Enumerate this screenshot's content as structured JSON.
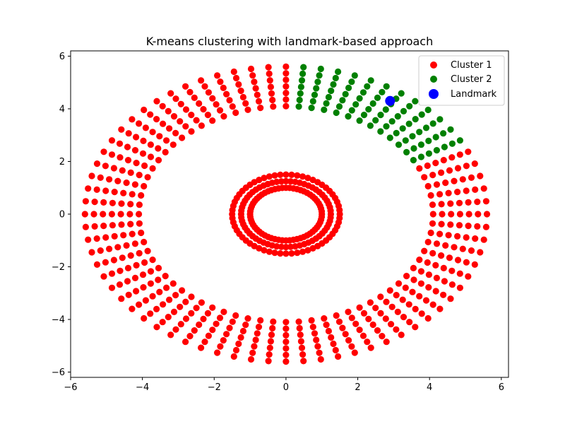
{
  "chart_data": {
    "type": "scatter",
    "title": "K-means clustering with landmark-based approach",
    "xlabel": "",
    "ylabel": "",
    "xlim": [
      -6.0,
      6.2
    ],
    "ylim": [
      -6.2,
      6.2
    ],
    "xticks": [
      -6,
      -4,
      -2,
      0,
      2,
      4,
      6
    ],
    "yticks": [
      -6,
      -4,
      -2,
      0,
      2,
      4,
      6
    ],
    "xtick_labels": [
      "−6",
      "−4",
      "−2",
      "0",
      "2",
      "4",
      "6"
    ],
    "ytick_labels": [
      "−6",
      "−4",
      "−2",
      "0",
      "2",
      "4",
      "6"
    ],
    "grid": false,
    "legend_position": "top-right",
    "dataset": {
      "outer_ring": {
        "radius_min": 4.1,
        "radius_max": 5.6,
        "radial_points": 7,
        "spokes": 72
      },
      "inner_rings": [
        {
          "radius": 1.0,
          "points": 60
        },
        {
          "radius": 1.25,
          "points": 60
        },
        {
          "radius": 1.5,
          "points": 60
        }
      ],
      "cluster2_angle_range_deg": [
        28,
        89
      ]
    },
    "series": [
      {
        "name": "Cluster 1",
        "color": "#ff0000",
        "marker": "circle"
      },
      {
        "name": "Cluster 2",
        "color": "#008000",
        "marker": "circle"
      },
      {
        "name": "Landmark",
        "color": "#0000ff",
        "marker": "circle-large",
        "points": [
          [
            2.9,
            4.3
          ]
        ]
      }
    ]
  }
}
